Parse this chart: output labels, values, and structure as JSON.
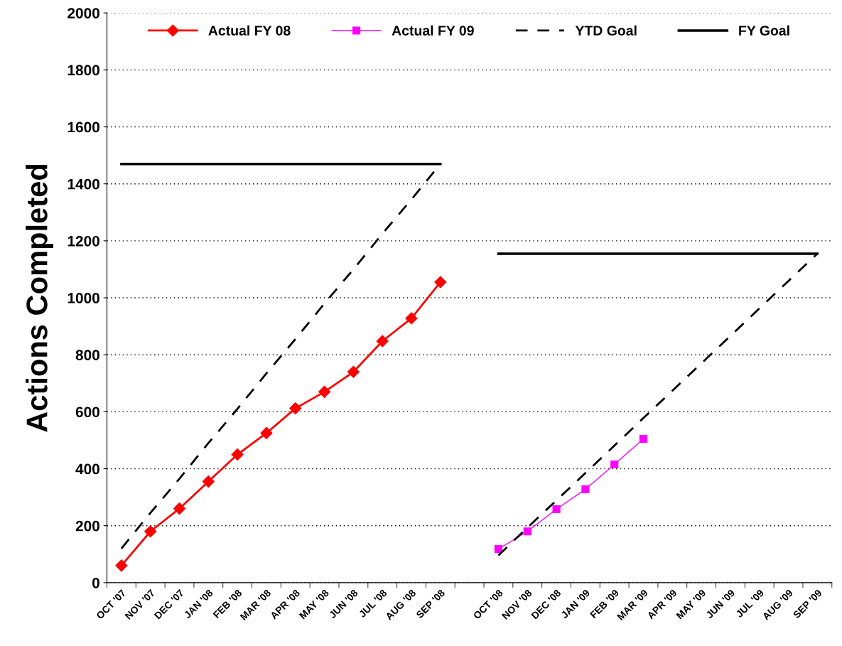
{
  "chart_data": {
    "type": "line",
    "ylabel": "Actions Completed",
    "categories": [
      "OCT '07",
      "NOV '07",
      "DEC '07",
      "JAN '08",
      "FEB '08",
      "MAR '08",
      "APR '08",
      "MAY '08",
      "JUN '08",
      "JUL '08",
      "AUG '08",
      "SEP '08",
      null,
      "OCT '08",
      "NOV '08",
      "DEC '08",
      "JAN '09",
      "FEB '09",
      "MAR '09",
      "APR '09",
      "MAY '09",
      "JUN '09",
      "JUL '09",
      "AUG '09",
      "SEP '09"
    ],
    "series": [
      {
        "name": "Actual FY 08",
        "color": "#ff0000",
        "marker": "diamond",
        "line_style": "solid",
        "values": [
          60,
          180,
          260,
          355,
          450,
          525,
          612,
          670,
          740,
          848,
          928,
          1055,
          null,
          null,
          null,
          null,
          null,
          null,
          null,
          null,
          null,
          null,
          null,
          null,
          null
        ]
      },
      {
        "name": "Actual FY 09",
        "color": "#ff00ff",
        "marker": "square",
        "line_style": "solid",
        "values": [
          null,
          null,
          null,
          null,
          null,
          null,
          null,
          null,
          null,
          null,
          null,
          null,
          null,
          118,
          180,
          258,
          328,
          415,
          505,
          null,
          null,
          null,
          null,
          null,
          null
        ]
      },
      {
        "name": "YTD Goal",
        "color": "#000000",
        "marker": "none",
        "line_style": "dashed",
        "values": [
          120,
          245,
          365,
          490,
          610,
          735,
          855,
          980,
          1100,
          1225,
          1345,
          1470,
          null,
          96,
          193,
          289,
          385,
          481,
          578,
          674,
          770,
          866,
          963,
          1059,
          1155
        ]
      },
      {
        "name": "FY Goal",
        "color": "#000000",
        "marker": "none",
        "line_style": "solid",
        "values": [
          1470,
          1470,
          1470,
          1470,
          1470,
          1470,
          1470,
          1470,
          1470,
          1470,
          1470,
          1470,
          null,
          1155,
          1155,
          1155,
          1155,
          1155,
          1155,
          1155,
          1155,
          1155,
          1155,
          1155,
          1155
        ]
      }
    ],
    "ylim": [
      0,
      2000
    ],
    "yticks": [
      0,
      200,
      400,
      600,
      800,
      1000,
      1200,
      1400,
      1600,
      1800,
      2000
    ],
    "grid": "y",
    "legend": "top"
  }
}
